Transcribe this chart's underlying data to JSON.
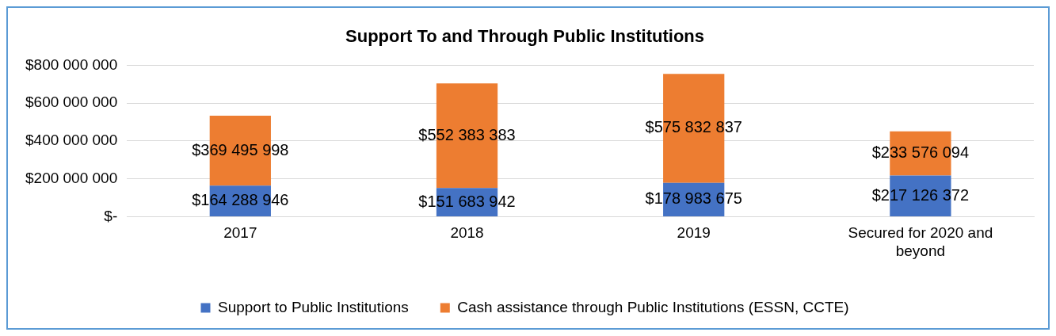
{
  "chart_data": {
    "type": "bar",
    "title": "Support To and Through Public Institutions",
    "stacked": true,
    "categories": [
      "2017",
      "2018",
      "2019",
      "Secured for 2020 and beyond"
    ],
    "series": [
      {
        "name": "Support to Public Institutions",
        "color": "#4472c4",
        "values": [
          164288946,
          151683942,
          178983675,
          217126372
        ],
        "value_labels": [
          "$164 288 946",
          "$151 683 942",
          "$178 983 675",
          "$217 126 372"
        ]
      },
      {
        "name": "Cash assistance through Public Institutions (ESSN, CCTE)",
        "color": "#ed7d31",
        "values": [
          369495998,
          552383383,
          575832837,
          233576094
        ],
        "value_labels": [
          "$369 495 998",
          "$552 383 383",
          "$575 832 837",
          "$233 576 094"
        ]
      }
    ],
    "ylim": [
      0,
      800000000
    ],
    "yticks": [
      {
        "value": 0,
        "label": "$-"
      },
      {
        "value": 200000000,
        "label": "$200 000 000"
      },
      {
        "value": 400000000,
        "label": "$400 000 000"
      },
      {
        "value": 600000000,
        "label": "$600 000 000"
      },
      {
        "value": 800000000,
        "label": "$800 000 000"
      }
    ],
    "grid": "y",
    "legend": "bottom"
  }
}
